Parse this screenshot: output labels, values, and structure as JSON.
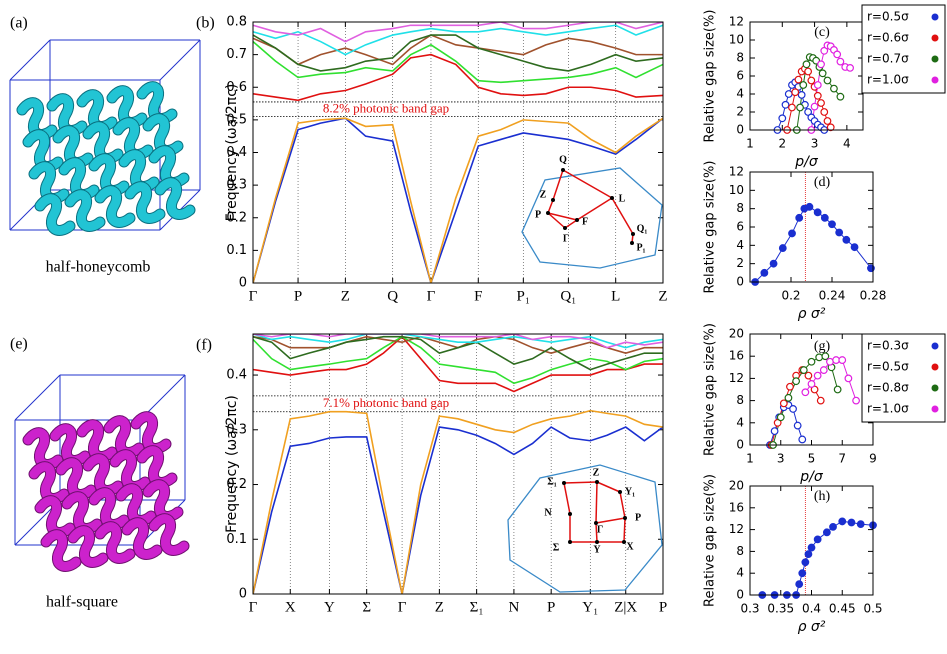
{
  "panels": {
    "a": {
      "label": "(a)",
      "caption": "half-honeycomb"
    },
    "e": {
      "label": "(e)",
      "caption": "half-square"
    }
  },
  "chart_data": [
    {
      "type": "band",
      "label": "(b)",
      "y_label": "Frequency (ωa/2πc)",
      "grid": "x",
      "xlim": [
        0,
        9.1
      ],
      "ylim": [
        0,
        0.8
      ],
      "xticks": [
        {
          "value": 0,
          "label": "Γ"
        },
        {
          "value": 1,
          "label": "P"
        },
        {
          "value": 2.05,
          "label": "Z"
        },
        {
          "value": 3.1,
          "label": "Q"
        },
        {
          "value": 3.95,
          "label": "Γ"
        },
        {
          "value": 5,
          "label": "F"
        },
        {
          "value": 6,
          "label": "P₁"
        },
        {
          "value": 7,
          "label": "Q₁"
        },
        {
          "value": 8.05,
          "label": "L"
        },
        {
          "value": 9.1,
          "label": "Z"
        }
      ],
      "yticks": [
        0,
        0.1,
        0.2,
        0.3,
        0.4,
        0.5,
        0.6,
        0.7,
        0.8
      ],
      "hlines": [
        0.51,
        0.555
      ],
      "annotation": "8.2% photonic band gap",
      "inset_labels": [
        "Q",
        "L",
        "Z",
        "P",
        "F",
        "Γ",
        "Q₁",
        "P₁"
      ],
      "x": [
        0,
        0.5,
        1,
        1.5,
        2.05,
        2.5,
        3.1,
        3.5,
        3.95,
        4.5,
        5,
        5.5,
        6,
        6.5,
        7,
        7.5,
        8.05,
        8.5,
        9.1
      ],
      "series": [
        {
          "color": "#1a2fd0",
          "values": [
            0,
            0.25,
            0.47,
            0.49,
            0.505,
            0.45,
            0.435,
            0.22,
            0,
            0.22,
            0.42,
            0.44,
            0.46,
            0.45,
            0.44,
            0.42,
            0.395,
            0.44,
            0.505
          ]
        },
        {
          "color": "#f0a020",
          "values": [
            0,
            0.26,
            0.49,
            0.5,
            0.505,
            0.48,
            0.485,
            0.25,
            0,
            0.26,
            0.45,
            0.47,
            0.5,
            0.495,
            0.49,
            0.44,
            0.4,
            0.45,
            0.505
          ]
        },
        {
          "color": "#e01010",
          "values": [
            0.58,
            0.57,
            0.56,
            0.58,
            0.59,
            0.61,
            0.64,
            0.69,
            0.7,
            0.67,
            0.6,
            0.58,
            0.575,
            0.58,
            0.6,
            0.6,
            0.59,
            0.57,
            0.575
          ]
        },
        {
          "color": "#30e030",
          "values": [
            0.74,
            0.68,
            0.63,
            0.64,
            0.645,
            0.66,
            0.65,
            0.7,
            0.73,
            0.68,
            0.62,
            0.615,
            0.62,
            0.625,
            0.63,
            0.64,
            0.66,
            0.63,
            0.67
          ]
        },
        {
          "color": "#a0522d",
          "values": [
            0.75,
            0.72,
            0.67,
            0.7,
            0.72,
            0.7,
            0.67,
            0.72,
            0.76,
            0.73,
            0.72,
            0.71,
            0.7,
            0.73,
            0.75,
            0.74,
            0.72,
            0.7,
            0.7
          ]
        },
        {
          "color": "#2e6b1f",
          "values": [
            0.76,
            0.72,
            0.67,
            0.65,
            0.66,
            0.68,
            0.69,
            0.74,
            0.76,
            0.76,
            0.72,
            0.7,
            0.68,
            0.66,
            0.65,
            0.67,
            0.7,
            0.68,
            0.69
          ]
        },
        {
          "color": "#20e0e8",
          "values": [
            0.77,
            0.75,
            0.77,
            0.74,
            0.7,
            0.73,
            0.76,
            0.77,
            0.78,
            0.77,
            0.77,
            0.78,
            0.77,
            0.76,
            0.77,
            0.78,
            0.79,
            0.76,
            0.79
          ]
        },
        {
          "color": "#e060e0",
          "values": [
            0.79,
            0.77,
            0.76,
            0.78,
            0.74,
            0.77,
            0.78,
            0.79,
            0.79,
            0.79,
            0.79,
            0.8,
            0.78,
            0.78,
            0.79,
            0.8,
            0.8,
            0.78,
            0.8
          ]
        }
      ]
    },
    {
      "type": "line",
      "label": "(c)",
      "y_label": "Relative gap size(%)",
      "x_label": "p/σ",
      "marker": "open",
      "legend": "outside right",
      "xlim": [
        1,
        4.5
      ],
      "ylim": [
        0,
        12
      ],
      "xticks": [
        1,
        2,
        3,
        4
      ],
      "yticks": [
        0,
        2,
        4,
        6,
        8,
        10,
        12
      ],
      "series": [
        {
          "name": "r=0.5σ",
          "color": "#1a2fd0",
          "x": [
            1.85,
            2.0,
            2.1,
            2.2,
            2.3,
            2.4,
            2.5,
            2.6,
            2.7,
            2.8,
            2.9,
            3.0,
            3.1,
            3.2,
            3.3
          ],
          "values": [
            0,
            1.3,
            2.8,
            4.0,
            5.0,
            5.3,
            4.8,
            3.9,
            2.8,
            2.0,
            1.4,
            1.0,
            0.6,
            0.3,
            0
          ]
        },
        {
          "name": "r=0.6σ",
          "color": "#e01010",
          "x": [
            2.15,
            2.3,
            2.4,
            2.5,
            2.6,
            2.7,
            2.8,
            2.9,
            3.0,
            3.1,
            3.2,
            3.3,
            3.4,
            3.5
          ],
          "values": [
            0,
            2.5,
            4.2,
            5.6,
            6.5,
            6.8,
            6.5,
            5.5,
            4.8,
            3.8,
            3.0,
            2.0,
            1.0,
            0.3
          ]
        },
        {
          "name": "r=0.7σ",
          "color": "#1e6b14",
          "x": [
            2.45,
            2.55,
            2.65,
            2.75,
            2.85,
            2.95,
            3.05,
            3.15,
            3.25,
            3.4,
            3.6,
            3.8
          ],
          "values": [
            0,
            2.5,
            5,
            7.3,
            8.1,
            8.0,
            7.7,
            7.0,
            6.3,
            5.5,
            4.6,
            3.7
          ]
        },
        {
          "name": "r=1.0σ",
          "color": "#e020e0",
          "x": [
            2.9,
            3.0,
            3.1,
            3.2,
            3.3,
            3.4,
            3.5,
            3.6,
            3.7,
            3.8,
            3.95,
            4.1
          ],
          "values": [
            0,
            2.6,
            5,
            7.3,
            8.8,
            9.4,
            9.3,
            8.9,
            8.4,
            7.6,
            7.0,
            6.9
          ]
        }
      ]
    },
    {
      "type": "line",
      "label": "(d)",
      "y_label": "Relative gap size(%)",
      "x_label": "ρ σ²",
      "marker": "filled",
      "xlim": [
        0.16,
        0.28
      ],
      "ylim": [
        0,
        12
      ],
      "xticks": [
        0.2,
        0.24,
        0.28
      ],
      "yticks": [
        0,
        2,
        4,
        6,
        8,
        10,
        12
      ],
      "vline": 0.214,
      "series": [
        {
          "color": "#1a2fd0",
          "x": [
            0.165,
            0.174,
            0.183,
            0.192,
            0.201,
            0.208,
            0.213,
            0.218,
            0.226,
            0.233,
            0.24,
            0.247,
            0.254,
            0.262,
            0.278
          ],
          "values": [
            0,
            1,
            2,
            3.7,
            5.3,
            7,
            8,
            8.2,
            7.6,
            7,
            6.3,
            5.4,
            4.6,
            3.8,
            1.5
          ]
        }
      ]
    },
    {
      "type": "band",
      "label": "(f)",
      "y_label": "Frequency (ωa/2πc)",
      "grid": "x",
      "xlim": [
        0,
        11
      ],
      "ylim": [
        0,
        0.475
      ],
      "xticks": [
        {
          "value": 0,
          "label": "Γ"
        },
        {
          "value": 1,
          "label": "X"
        },
        {
          "value": 2.05,
          "label": "Y"
        },
        {
          "value": 3.05,
          "label": "Σ"
        },
        {
          "value": 4,
          "label": "Γ"
        },
        {
          "value": 5,
          "label": "Z"
        },
        {
          "value": 6,
          "label": "Σ₁"
        },
        {
          "value": 7,
          "label": "N"
        },
        {
          "value": 8,
          "label": "P"
        },
        {
          "value": 9.05,
          "label": "Y₁"
        },
        {
          "value": 10,
          "label": "Z|X"
        },
        {
          "value": 11,
          "label": "P"
        }
      ],
      "yticks": [
        0,
        0.1,
        0.2,
        0.3,
        0.4
      ],
      "hlines": [
        0.333,
        0.362
      ],
      "annotation": "7.1% photonic band gap",
      "inset_labels": [
        "Z",
        "Σ₁",
        "Y₁",
        "N",
        "P",
        "Γ",
        "Σ",
        "Y",
        "X"
      ],
      "x": [
        0,
        0.5,
        1,
        1.5,
        2.05,
        2.5,
        3.05,
        3.5,
        4,
        4.5,
        5,
        5.5,
        6,
        6.5,
        7,
        7.5,
        8,
        8.5,
        9.05,
        9.5,
        10,
        10.5,
        11
      ],
      "series": [
        {
          "color": "#1a2fd0",
          "values": [
            0,
            0.15,
            0.27,
            0.275,
            0.285,
            0.287,
            0.287,
            0.15,
            0,
            0.18,
            0.305,
            0.3,
            0.29,
            0.275,
            0.255,
            0.275,
            0.305,
            0.285,
            0.28,
            0.29,
            0.305,
            0.28,
            0.305
          ]
        },
        {
          "color": "#f0a020",
          "values": [
            0,
            0.17,
            0.32,
            0.325,
            0.333,
            0.333,
            0.33,
            0.17,
            0,
            0.2,
            0.325,
            0.32,
            0.31,
            0.3,
            0.295,
            0.31,
            0.32,
            0.325,
            0.335,
            0.33,
            0.325,
            0.31,
            0.305
          ]
        },
        {
          "color": "#e01010",
          "values": [
            0.41,
            0.405,
            0.4,
            0.405,
            0.41,
            0.41,
            0.42,
            0.44,
            0.47,
            0.43,
            0.39,
            0.385,
            0.385,
            0.385,
            0.37,
            0.385,
            0.4,
            0.4,
            0.4,
            0.41,
            0.41,
            0.42,
            0.42
          ]
        },
        {
          "color": "#30e030",
          "values": [
            0.465,
            0.43,
            0.41,
            0.415,
            0.42,
            0.425,
            0.43,
            0.45,
            0.47,
            0.45,
            0.42,
            0.415,
            0.41,
            0.405,
            0.385,
            0.395,
            0.41,
            0.42,
            0.43,
            0.425,
            0.41,
            0.425,
            0.43
          ]
        },
        {
          "color": "#a0522d",
          "values": [
            0.47,
            0.465,
            0.45,
            0.45,
            0.45,
            0.46,
            0.47,
            0.465,
            0.46,
            0.47,
            0.46,
            0.45,
            0.465,
            0.47,
            0.465,
            0.45,
            0.44,
            0.45,
            0.46,
            0.45,
            0.44,
            0.45,
            0.45
          ]
        },
        {
          "color": "#2e6b1f",
          "values": [
            0.47,
            0.46,
            0.43,
            0.44,
            0.45,
            0.46,
            0.465,
            0.47,
            0.47,
            0.465,
            0.44,
            0.45,
            0.46,
            0.44,
            0.42,
            0.43,
            0.45,
            0.43,
            0.41,
            0.42,
            0.43,
            0.44,
            0.44
          ]
        },
        {
          "color": "#20e0e8",
          "values": [
            0.475,
            0.465,
            0.47,
            0.465,
            0.46,
            0.465,
            0.475,
            0.475,
            0.475,
            0.47,
            0.465,
            0.46,
            0.46,
            0.465,
            0.47,
            0.465,
            0.46,
            0.465,
            0.47,
            0.46,
            0.45,
            0.46,
            0.465
          ]
        },
        {
          "color": "#e060e0",
          "values": [
            0.475,
            0.47,
            0.475,
            0.475,
            0.47,
            0.475,
            0.475,
            0.475,
            0.475,
            0.475,
            0.47,
            0.47,
            0.47,
            0.47,
            0.475,
            0.465,
            0.47,
            0.47,
            0.465,
            0.45,
            0.46,
            0.455,
            0.46
          ]
        }
      ]
    },
    {
      "type": "line",
      "label": "(g)",
      "y_label": "Relative gap size(%)",
      "x_label": "p/σ",
      "marker": "open",
      "legend": "outside right",
      "xlim": [
        1,
        9
      ],
      "ylim": [
        0,
        20
      ],
      "xticks": [
        1,
        3,
        5,
        7,
        9
      ],
      "yticks": [
        0,
        4,
        8,
        12,
        16,
        20
      ],
      "series": [
        {
          "name": "r=0.3σ",
          "color": "#1a2fd0",
          "x": [
            2.3,
            2.6,
            2.9,
            3.2,
            3.5,
            3.8,
            4.1,
            4.4
          ],
          "values": [
            0,
            2.5,
            5,
            6.8,
            7.2,
            6.5,
            3.5,
            1.0
          ]
        },
        {
          "name": "r=0.5σ",
          "color": "#e01010",
          "x": [
            2.4,
            2.8,
            3.2,
            3.6,
            4.0,
            4.4,
            4.8,
            5.2,
            5.6
          ],
          "values": [
            0,
            4,
            7.5,
            10.5,
            12.5,
            13.5,
            12.5,
            10,
            8
          ]
        },
        {
          "name": "r=0.8σ",
          "color": "#1e6b14",
          "x": [
            2.5,
            3.0,
            3.5,
            4.0,
            4.5,
            5.0,
            5.5,
            5.9,
            6.3,
            6.7
          ],
          "values": [
            0,
            5,
            8.5,
            11.5,
            13.5,
            15,
            15.8,
            16,
            14,
            10
          ]
        },
        {
          "name": "r=1.0σ",
          "color": "#e020e0",
          "x": [
            4.6,
            5.0,
            5.4,
            5.8,
            6.2,
            6.6,
            7.0,
            7.4,
            7.9
          ],
          "values": [
            9.5,
            11,
            12.5,
            13.5,
            15,
            15.3,
            15.3,
            12,
            8
          ]
        }
      ]
    },
    {
      "type": "line",
      "label": "(h)",
      "y_label": "Relative gap size(%)",
      "x_label": "ρ σ²",
      "marker": "filled",
      "xlim": [
        0.3,
        0.5
      ],
      "ylim": [
        0,
        20
      ],
      "xticks": [
        0.3,
        0.35,
        0.4,
        0.45,
        0.5
      ],
      "yticks": [
        0,
        4,
        8,
        12,
        16,
        20
      ],
      "vline": 0.39,
      "series": [
        {
          "color": "#1a2fd0",
          "x": [
            0.32,
            0.34,
            0.36,
            0.375,
            0.38,
            0.385,
            0.39,
            0.395,
            0.4,
            0.41,
            0.425,
            0.435,
            0.45,
            0.465,
            0.48,
            0.5
          ],
          "values": [
            0,
            0,
            0,
            0,
            2,
            4,
            6,
            7.5,
            8.7,
            10.2,
            11.5,
            12.5,
            13.5,
            13.3,
            13.0,
            12.8
          ]
        }
      ]
    }
  ]
}
